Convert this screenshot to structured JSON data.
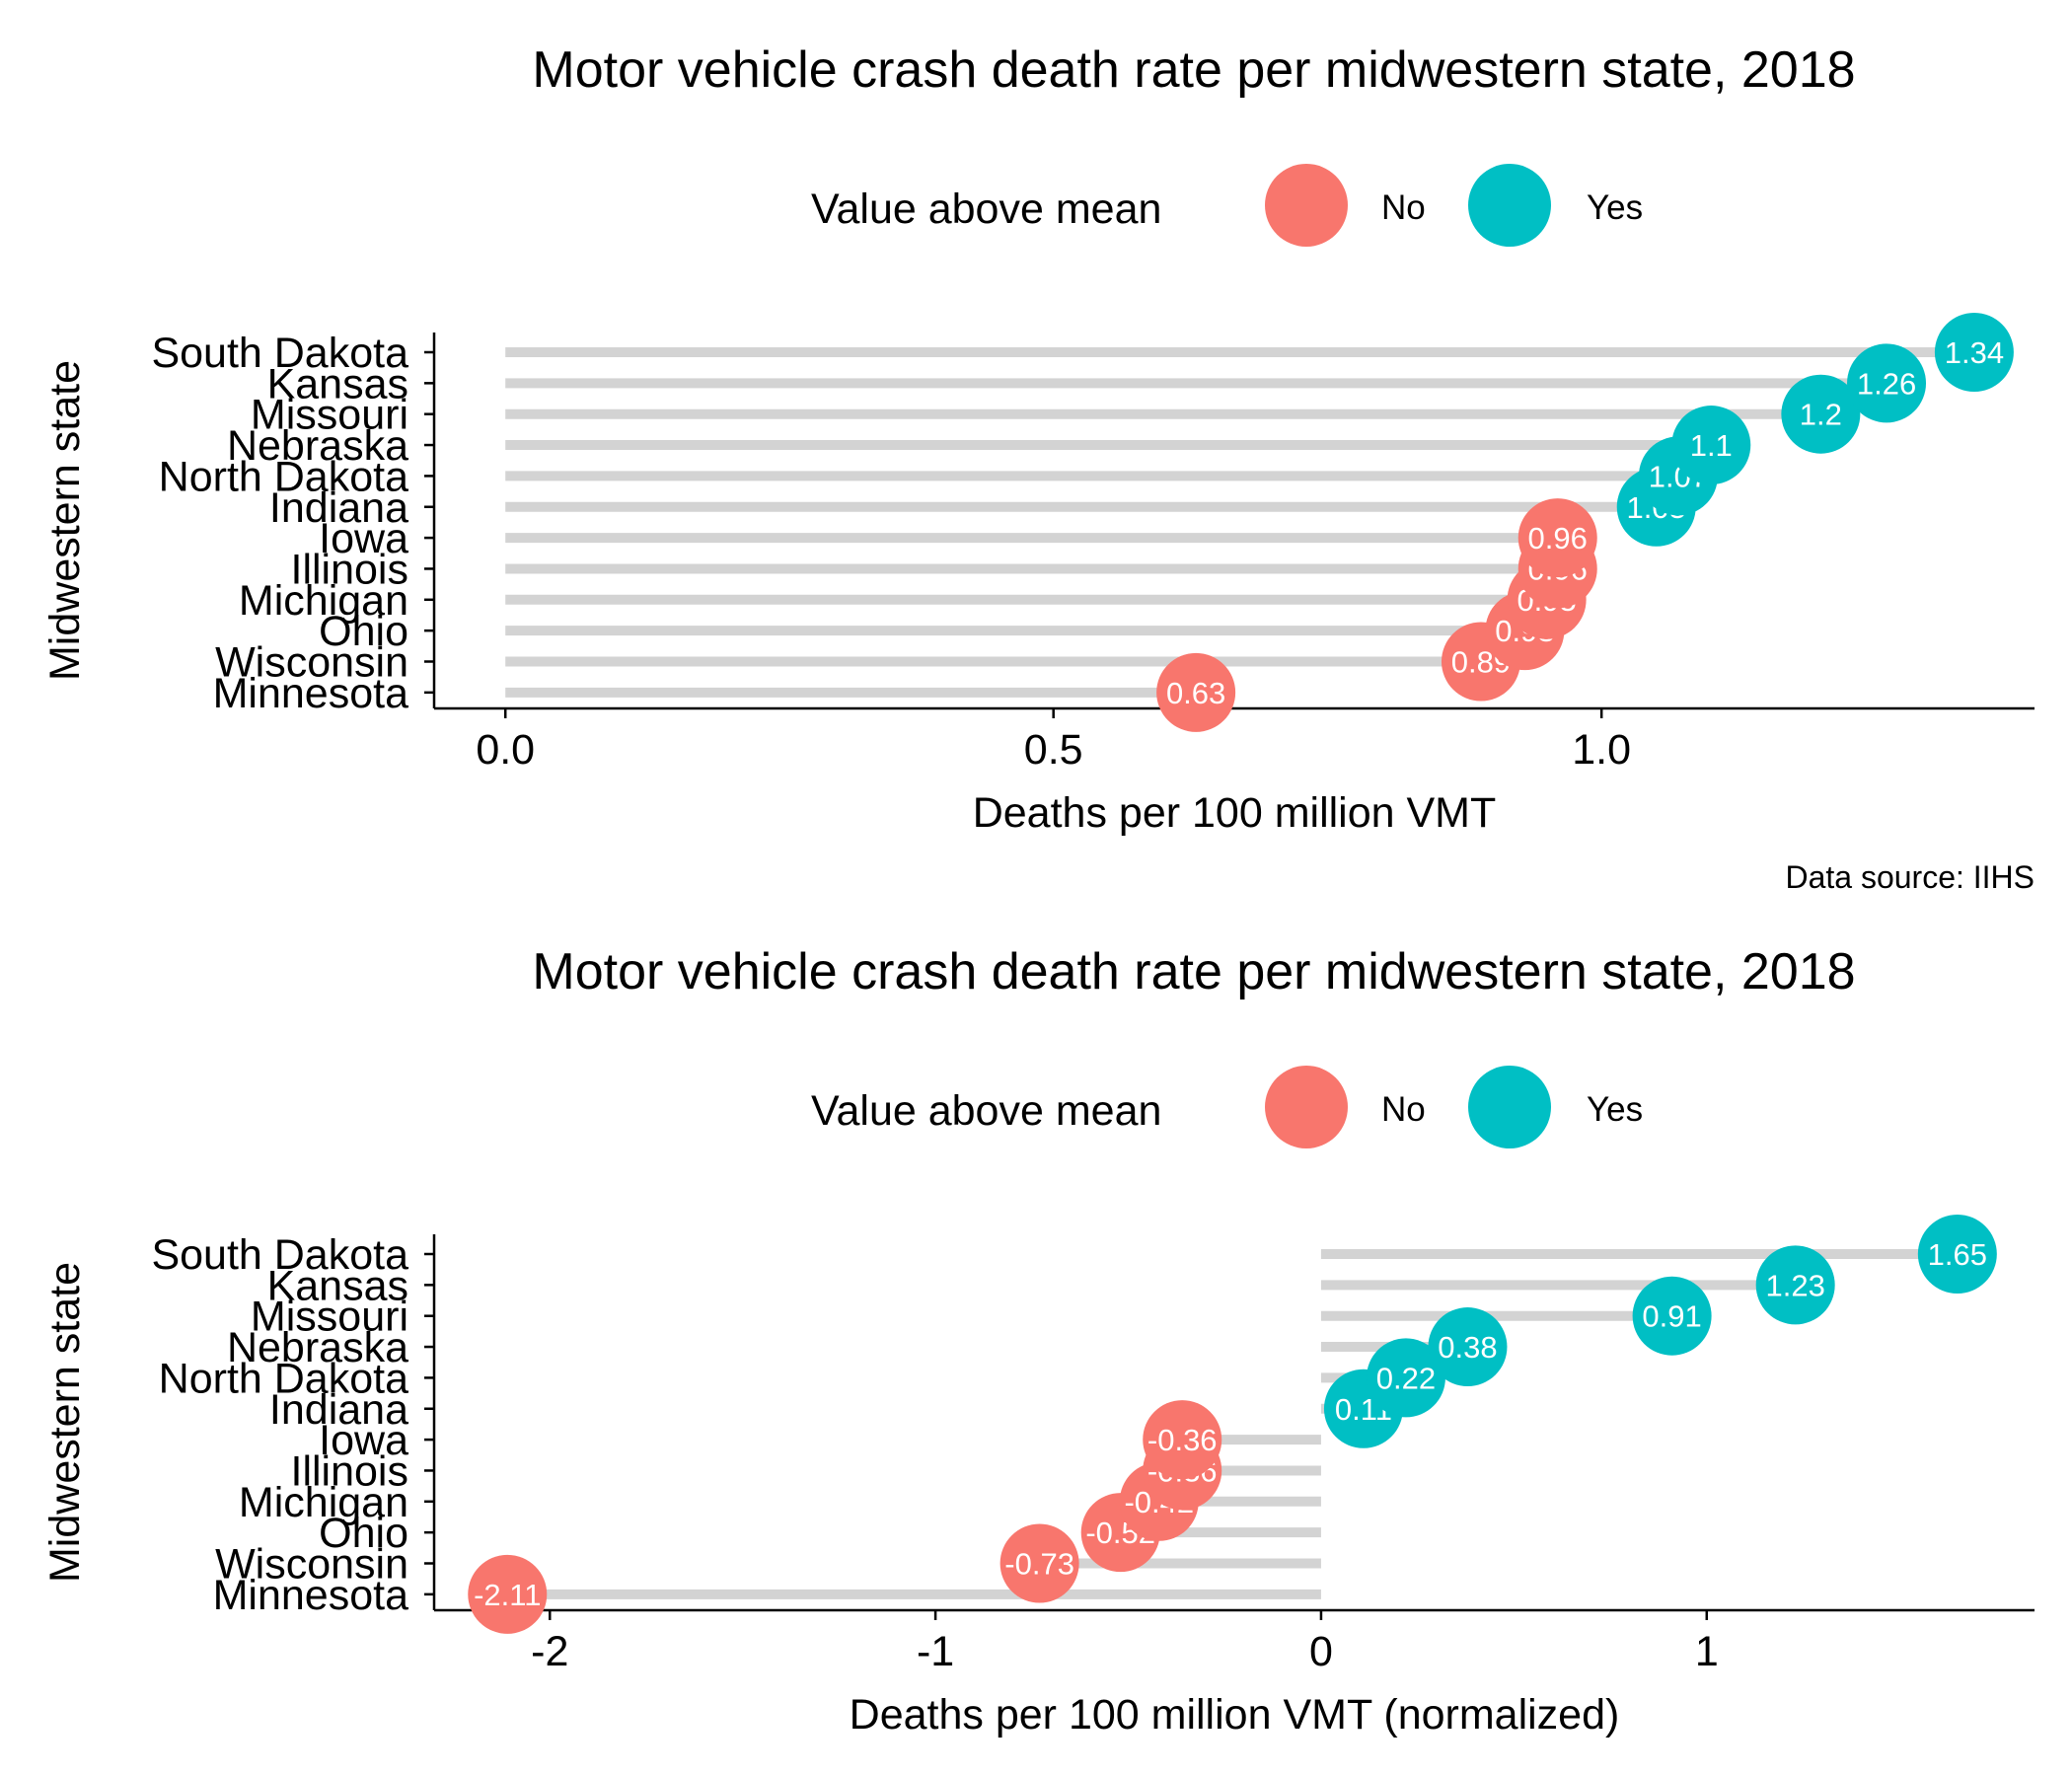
{
  "figure": {
    "caption": "Data source: IIHS"
  },
  "chart_data": [
    {
      "type": "lollipop",
      "title": "Motor vehicle crash death rate per midwestern state, 2018",
      "xlabel": "Deaths per 100 million VMT",
      "ylabel": "Midwestern state",
      "xlim": [
        -0.065,
        1.395
      ],
      "xticks": [
        0.0,
        0.5,
        1.0
      ],
      "xtick_labels": [
        "0.0",
        "0.5",
        "1.0"
      ],
      "baseline": 0,
      "grid": false,
      "legend": {
        "title": "Value above mean",
        "placement": "top",
        "entries": [
          {
            "label": "No",
            "color": "#F8766D"
          },
          {
            "label": "Yes",
            "color": "#00BFC4"
          }
        ]
      },
      "categories": [
        "South Dakota",
        "Kansas",
        "Missouri",
        "Nebraska",
        "North Dakota",
        "Indiana",
        "Iowa",
        "Illinois",
        "Michigan",
        "Ohio",
        "Wisconsin",
        "Minnesota"
      ],
      "values": [
        1.34,
        1.26,
        1.2,
        1.1,
        1.07,
        1.05,
        0.96,
        0.96,
        0.95,
        0.93,
        0.89,
        0.63
      ],
      "value_labels": [
        "1.34",
        "1.26",
        "1.2",
        "1.1",
        "1.07",
        "1.05",
        "0.96",
        "0.96",
        "0.95",
        "0.93",
        "0.89",
        "0.63"
      ],
      "above_mean": [
        true,
        true,
        true,
        true,
        true,
        true,
        false,
        false,
        false,
        false,
        false,
        false
      ]
    },
    {
      "type": "lollipop",
      "title": "Motor vehicle crash death rate per midwestern state, 2018",
      "xlabel": "Deaths per 100 million VMT (normalized)",
      "ylabel": "Midwestern state",
      "xlim": [
        -2.3,
        1.85
      ],
      "xticks": [
        -2,
        -1,
        0,
        1
      ],
      "xtick_labels": [
        "-2",
        "-1",
        "0",
        "1"
      ],
      "baseline": 0,
      "grid": false,
      "legend": {
        "title": "Value above mean",
        "placement": "top",
        "entries": [
          {
            "label": "No",
            "color": "#F8766D"
          },
          {
            "label": "Yes",
            "color": "#00BFC4"
          }
        ]
      },
      "categories": [
        "South Dakota",
        "Kansas",
        "Missouri",
        "Nebraska",
        "North Dakota",
        "Indiana",
        "Iowa",
        "Illinois",
        "Michigan",
        "Ohio",
        "Wisconsin",
        "Minnesota"
      ],
      "values": [
        1.65,
        1.23,
        0.91,
        0.38,
        0.22,
        0.11,
        -0.36,
        -0.36,
        -0.42,
        -0.52,
        -0.73,
        -2.11
      ],
      "value_labels": [
        "1.65",
        "1.23",
        "0.91",
        "0.38",
        "0.22",
        "0.11",
        "-0.36",
        "-0.36",
        "-0.42",
        "-0.52",
        "-0.73",
        "-2.11"
      ],
      "above_mean": [
        true,
        true,
        true,
        true,
        true,
        true,
        false,
        false,
        false,
        false,
        false,
        false
      ]
    }
  ]
}
